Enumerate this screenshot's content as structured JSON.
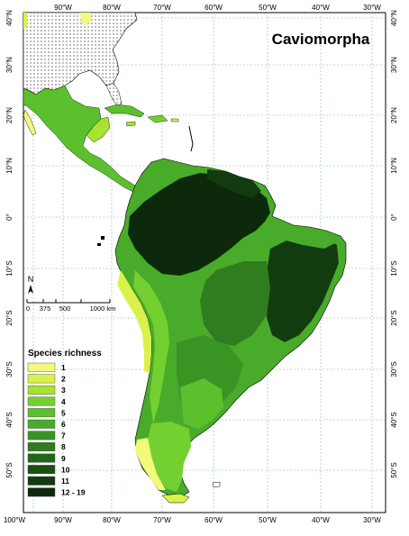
{
  "title": "Caviomorpha",
  "top_axis_labels": [
    "90°W",
    "80°W",
    "70°W",
    "60°W",
    "50°W",
    "40°W",
    "30°W"
  ],
  "bottom_axis_labels": [
    "100°W",
    "90°W",
    "80°W",
    "70°W",
    "60°W",
    "50°W",
    "40°W",
    "30°W"
  ],
  "left_axis_labels": [
    "40°N",
    "30°N",
    "20°N",
    "10°N",
    "0°",
    "10°S",
    "20°S",
    "30°S",
    "40°S",
    "50°S"
  ],
  "right_axis_labels": [
    "40°N",
    "30°N",
    "20°N",
    "10°N",
    "0°",
    "10°S",
    "20°S",
    "30°S",
    "40°S",
    "50°S"
  ],
  "north_arrow_label": "N",
  "scale_bar": {
    "ticks": [
      "0",
      "375",
      "500",
      "1000 km"
    ]
  },
  "legend": {
    "title": "Species richness",
    "classes": [
      {
        "label": "1",
        "color": "#f3f97a"
      },
      {
        "label": "2",
        "color": "#d8f24a"
      },
      {
        "label": "3",
        "color": "#a8e232"
      },
      {
        "label": "4",
        "color": "#74cf30"
      },
      {
        "label": "5",
        "color": "#5cc02e"
      },
      {
        "label": "6",
        "color": "#48ab2a"
      },
      {
        "label": "7",
        "color": "#3a9424"
      },
      {
        "label": "8",
        "color": "#2f7d1f"
      },
      {
        "label": "9",
        "color": "#246619"
      },
      {
        "label": "10",
        "color": "#1a5014"
      },
      {
        "label": "11",
        "color": "#123c10"
      },
      {
        "label": "12 - 19",
        "color": "#0c2a0b"
      }
    ]
  }
}
